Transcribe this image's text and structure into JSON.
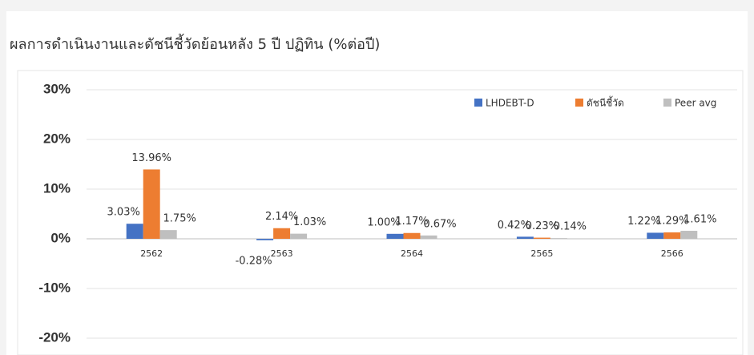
{
  "chart_data": {
    "type": "bar",
    "title": "ผลการดำเนินงานและดัชนีชี้วัดย้อนหลัง 5 ปี ปฏิทิน (%ต่อปี)",
    "categories": [
      "2562",
      "2563",
      "2564",
      "2565",
      "2566"
    ],
    "series": [
      {
        "name": "LHDEBT-D",
        "color": "#4472c4",
        "values": [
          3.03,
          -0.28,
          1.0,
          0.42,
          1.22
        ],
        "value_labels": [
          "3.03%",
          "-0.28%",
          "1.00%",
          "0.42%",
          "1.22%"
        ]
      },
      {
        "name": "ดัชนีชี้วัด",
        "color": "#ed7d31",
        "values": [
          13.96,
          2.14,
          1.17,
          0.23,
          1.29
        ],
        "value_labels": [
          "13.96%",
          "2.14%",
          "1.17%",
          "0.23%",
          "1.29%"
        ]
      },
      {
        "name": "Peer avg",
        "color": "#bfbfbf",
        "values": [
          1.75,
          1.03,
          0.67,
          0.14,
          1.61
        ],
        "value_labels": [
          "1.75%",
          "1.03%",
          "0.67%",
          "0.14%",
          "1.61%"
        ]
      }
    ],
    "ylim": [
      -20,
      30
    ],
    "yticks": [
      {
        "value": -20,
        "label": "-20%"
      },
      {
        "value": -10,
        "label": "-10%"
      },
      {
        "value": 0,
        "label": "0%"
      },
      {
        "value": 10,
        "label": "10%"
      },
      {
        "value": 20,
        "label": "20%"
      },
      {
        "value": 30,
        "label": "30%"
      }
    ],
    "grid": true,
    "legend": "top-right"
  }
}
